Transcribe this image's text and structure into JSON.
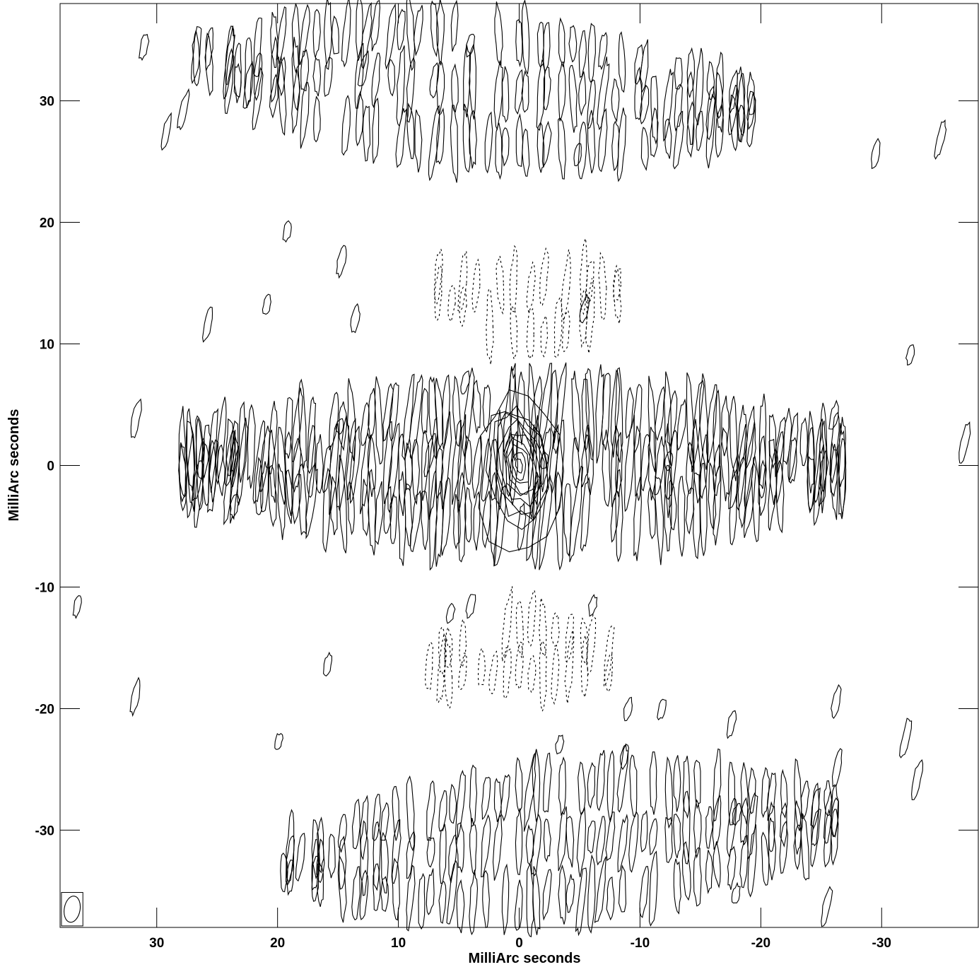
{
  "chart_data": {
    "type": "contour",
    "xlabel": "MilliArc seconds",
    "ylabel": "MilliArc seconds",
    "xlim": [
      38,
      -38
    ],
    "ylim": [
      -38,
      38
    ],
    "x_ticks": [
      30,
      20,
      10,
      0,
      -10,
      -20,
      -30
    ],
    "x_tick_labels": [
      "30",
      "20",
      "10",
      "0",
      "-10",
      "-20",
      "-30"
    ],
    "y_ticks": [
      30,
      20,
      10,
      0,
      -10,
      -20,
      -30
    ],
    "y_tick_labels": [
      "30",
      "20",
      "10",
      "0",
      "-10",
      "-20",
      "-30"
    ],
    "peak": {
      "x": 0,
      "y": 0
    },
    "peak_contour_levels": 9,
    "beam": {
      "x": 37,
      "y": -36.5,
      "major": 2.2,
      "minor": 0.7
    },
    "features": [
      {
        "kind": "horizontal-band",
        "y_center": 0,
        "y_half_width": 7,
        "x_range": [
          28,
          -27
        ],
        "density": 1.0,
        "dashed": false
      },
      {
        "kind": "arc-band",
        "y_center": 13,
        "y_half_width": 4,
        "x_range": [
          7,
          -9
        ],
        "density": 0.6,
        "dashed": true
      },
      {
        "kind": "arc-band",
        "y_center": -15,
        "y_half_width": 4,
        "x_range": [
          8,
          -8
        ],
        "density": 0.6,
        "dashed": true
      },
      {
        "kind": "diagonal-band",
        "y_center": 31,
        "y_half_width": 7,
        "x_range": [
          27,
          -20
        ],
        "density": 0.7,
        "dashed": false
      },
      {
        "kind": "diagonal-band",
        "y_center": -31,
        "y_half_width": 7,
        "x_range": [
          20,
          -27
        ],
        "density": 0.7,
        "dashed": false
      }
    ]
  }
}
